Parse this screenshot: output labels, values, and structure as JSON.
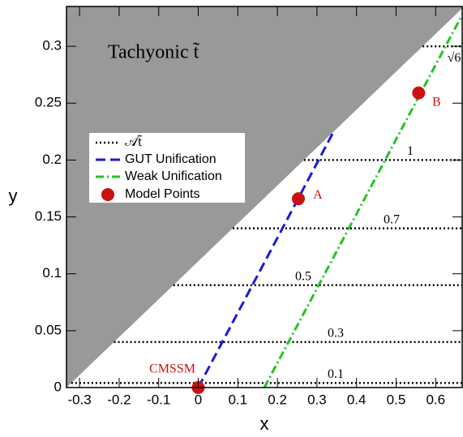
{
  "chart_data": {
    "type": "line",
    "xlabel": "x",
    "ylabel": "y",
    "xlim": [
      -0.333,
      0.667
    ],
    "ylim": [
      0,
      0.335
    ],
    "xticks": [
      -0.3,
      -0.2,
      -0.1,
      0,
      0.1,
      0.2,
      0.3,
      0.4,
      0.5,
      0.6
    ],
    "yticks": [
      0,
      0.05,
      0.1,
      0.15,
      0.2,
      0.25,
      0.3
    ],
    "region": {
      "label": "Tachyonic t̃",
      "color": "#999999",
      "boundary_x": [
        -0.333,
        0.672
      ],
      "boundary_y": [
        0,
        0.335
      ]
    },
    "contours": {
      "name": "𝒜t̃",
      "color": "#000000",
      "levels": [
        0.3,
        0.2,
        0.14,
        0.09,
        0.04,
        0.004
      ],
      "labels": [
        "√6",
        "1",
        "0.7",
        "0.5",
        "0.3",
        "0.1"
      ]
    },
    "series": [
      {
        "name": "GUT Unification",
        "color": "#1a1adb",
        "x": [
          0,
          0.339
        ],
        "values": [
          0,
          0.223
        ]
      },
      {
        "name": "Weak Unification",
        "color": "#22c422",
        "x": [
          0.167,
          0.663
        ],
        "values": [
          0,
          0.325
        ]
      },
      {
        "name": "Model Points",
        "color": "#cc1111",
        "x": [
          0,
          0.253,
          0.557
        ],
        "values": [
          0,
          0.166,
          0.259
        ],
        "point_labels": [
          "CMSSM",
          "A",
          "B"
        ]
      }
    ]
  }
}
